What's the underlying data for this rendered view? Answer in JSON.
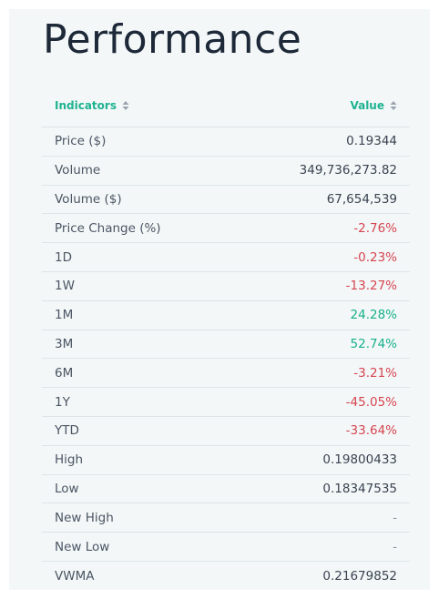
{
  "title": "Performance",
  "table": {
    "headers": {
      "indicators": "Indicators",
      "value": "Value"
    },
    "rows": [
      {
        "label": "Price ($)",
        "value": "0.19344",
        "tone": "neutral"
      },
      {
        "label": "Volume",
        "value": "349,736,273.82",
        "tone": "neutral"
      },
      {
        "label": "Volume ($)",
        "value": "67,654,539",
        "tone": "neutral"
      },
      {
        "label": "Price Change (%)",
        "value": "-2.76%",
        "tone": "neg"
      },
      {
        "label": "1D",
        "value": "-0.23%",
        "tone": "neg"
      },
      {
        "label": "1W",
        "value": "-13.27%",
        "tone": "neg"
      },
      {
        "label": "1M",
        "value": "24.28%",
        "tone": "pos"
      },
      {
        "label": "3M",
        "value": "52.74%",
        "tone": "pos"
      },
      {
        "label": "6M",
        "value": "-3.21%",
        "tone": "neg"
      },
      {
        "label": "1Y",
        "value": "-45.05%",
        "tone": "neg"
      },
      {
        "label": "YTD",
        "value": "-33.64%",
        "tone": "neg"
      },
      {
        "label": "High",
        "value": "0.19800433",
        "tone": "neutral"
      },
      {
        "label": "Low",
        "value": "0.18347535",
        "tone": "neutral"
      },
      {
        "label": "New High",
        "value": "-",
        "tone": "nil"
      },
      {
        "label": "New Low",
        "value": "-",
        "tone": "nil"
      },
      {
        "label": "VWMA",
        "value": "0.21679852",
        "tone": "neutral"
      }
    ]
  },
  "colors": {
    "accent": "#1fb390",
    "positive": "#17b08a",
    "negative": "#d64550",
    "card_background": "#f3f7f8"
  },
  "icons": {
    "sort": "sort-up-down-icon"
  }
}
